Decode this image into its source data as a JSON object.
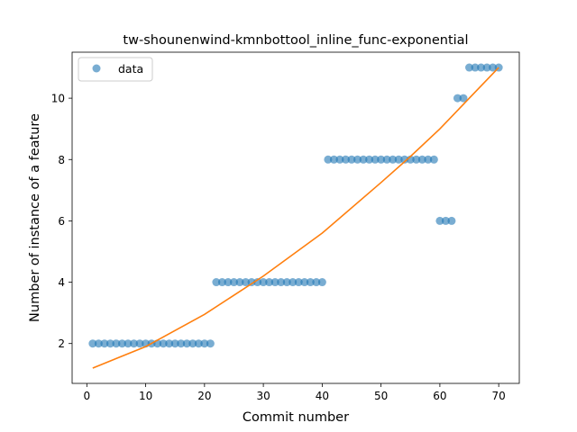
{
  "chart_data": {
    "type": "scatter",
    "title": "tw-shounenwind-kmnbottool_inline_func-exponential",
    "xlabel": "Commit number",
    "ylabel": "Number of instance of a feature",
    "xlim": [
      -2.5,
      73.5
    ],
    "ylim": [
      0.7,
      11.5
    ],
    "xticks": [
      0,
      10,
      20,
      30,
      40,
      50,
      60,
      70
    ],
    "yticks": [
      2,
      4,
      6,
      8,
      10
    ],
    "grid": false,
    "legend": {
      "position": "top-left",
      "entries": [
        "data"
      ]
    },
    "colors": {
      "data": "#1f77b4",
      "fit": "#ff7f0e"
    },
    "series": [
      {
        "name": "data",
        "kind": "points",
        "x": [
          1,
          2,
          3,
          4,
          5,
          6,
          7,
          8,
          9,
          10,
          11,
          12,
          13,
          14,
          15,
          16,
          17,
          18,
          19,
          20,
          21,
          22,
          23,
          24,
          25,
          26,
          27,
          28,
          29,
          30,
          31,
          32,
          33,
          34,
          35,
          36,
          37,
          38,
          39,
          40,
          41,
          42,
          43,
          44,
          45,
          46,
          47,
          48,
          49,
          50,
          51,
          52,
          53,
          54,
          55,
          56,
          57,
          58,
          59,
          60,
          61,
          62,
          63,
          64,
          65,
          66,
          67,
          68,
          69,
          70
        ],
        "y": [
          2,
          2,
          2,
          2,
          2,
          2,
          2,
          2,
          2,
          2,
          2,
          2,
          2,
          2,
          2,
          2,
          2,
          2,
          2,
          2,
          2,
          4,
          4,
          4,
          4,
          4,
          4,
          4,
          4,
          4,
          4,
          4,
          4,
          4,
          4,
          4,
          4,
          4,
          4,
          4,
          8,
          8,
          8,
          8,
          8,
          8,
          8,
          8,
          8,
          8,
          8,
          8,
          8,
          8,
          8,
          8,
          8,
          8,
          8,
          6,
          6,
          6,
          10,
          10,
          11,
          11,
          11,
          11,
          11,
          11
        ]
      },
      {
        "kind": "line",
        "model": "exponential",
        "x": [
          1,
          10,
          20,
          30,
          40,
          50,
          55,
          60,
          65,
          70
        ],
        "y": [
          1.2,
          1.9,
          2.95,
          4.2,
          5.6,
          7.25,
          8.1,
          9.0,
          10.0,
          11.0
        ]
      }
    ]
  }
}
